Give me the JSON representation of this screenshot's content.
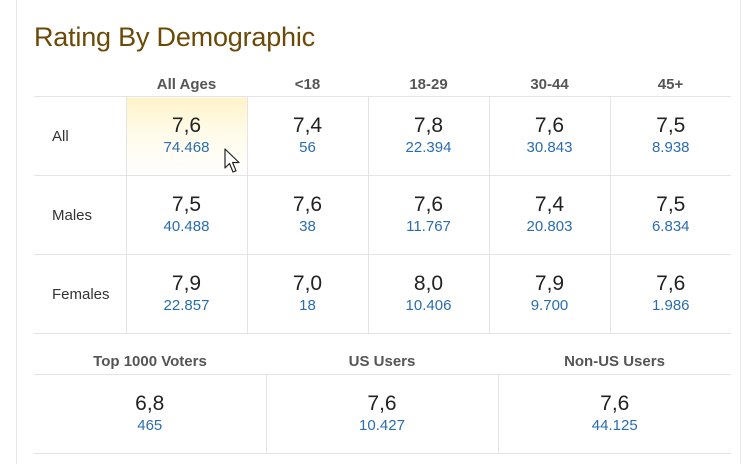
{
  "title": "Rating By Demographic",
  "columns": [
    "All Ages",
    "<18",
    "18-29",
    "30-44",
    "45+"
  ],
  "rows": [
    {
      "label": "All",
      "cells": [
        {
          "rating": "7,6",
          "votes": "74.468"
        },
        {
          "rating": "7,4",
          "votes": "56"
        },
        {
          "rating": "7,8",
          "votes": "22.394"
        },
        {
          "rating": "7,6",
          "votes": "30.843"
        },
        {
          "rating": "7,5",
          "votes": "8.938"
        }
      ]
    },
    {
      "label": "Males",
      "cells": [
        {
          "rating": "7,5",
          "votes": "40.488"
        },
        {
          "rating": "7,6",
          "votes": "38"
        },
        {
          "rating": "7,6",
          "votes": "11.767"
        },
        {
          "rating": "7,4",
          "votes": "20.803"
        },
        {
          "rating": "7,5",
          "votes": "6.834"
        }
      ]
    },
    {
      "label": "Females",
      "cells": [
        {
          "rating": "7,9",
          "votes": "22.857"
        },
        {
          "rating": "7,0",
          "votes": "18"
        },
        {
          "rating": "8,0",
          "votes": "10.406"
        },
        {
          "rating": "7,9",
          "votes": "9.700"
        },
        {
          "rating": "7,6",
          "votes": "1.986"
        }
      ]
    }
  ],
  "groups": [
    {
      "label": "Top 1000 Voters",
      "rating": "6,8",
      "votes": "465"
    },
    {
      "label": "US Users",
      "rating": "7,6",
      "votes": "10.427"
    },
    {
      "label": "Non-US Users",
      "rating": "7,6",
      "votes": "44.125"
    }
  ],
  "colors": {
    "title": "#6b4a07",
    "votes_link": "#2a6cb0",
    "highlight": "#fff3c8"
  },
  "cursor_icon": "mouse-pointer-icon"
}
